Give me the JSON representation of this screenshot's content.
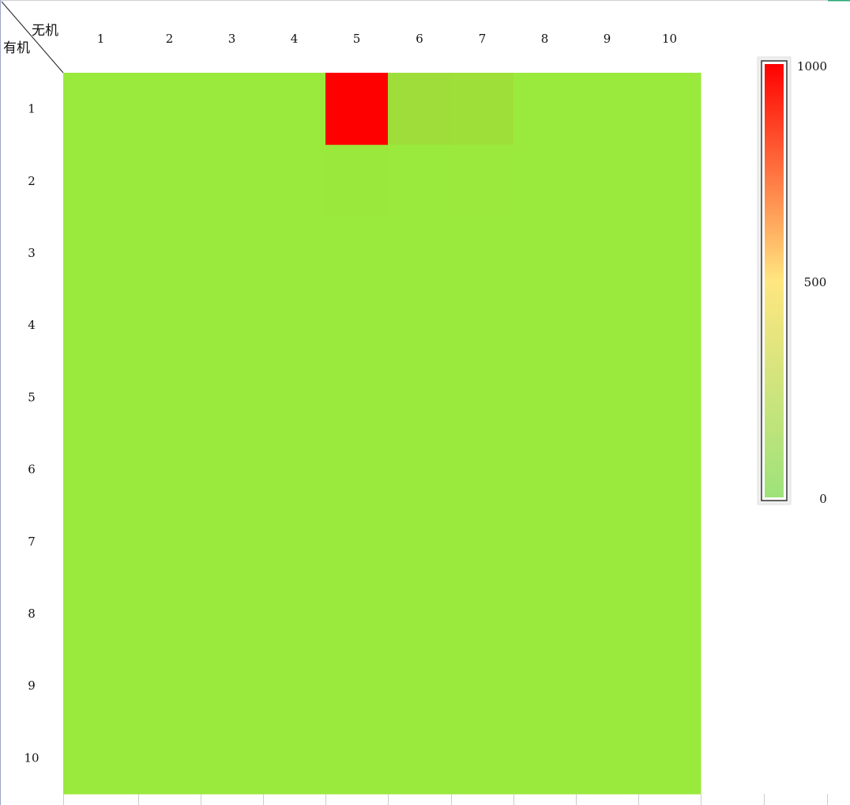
{
  "chart_data": {
    "type": "heatmap",
    "corner_labels": {
      "column_header": "无机",
      "row_header": "有机"
    },
    "columns": [
      "1",
      "2",
      "3",
      "4",
      "5",
      "6",
      "7",
      "8",
      "9",
      "10"
    ],
    "rows": [
      "1",
      "2",
      "3",
      "4",
      "5",
      "6",
      "7",
      "8",
      "9",
      "10"
    ],
    "values": [
      [
        0,
        0,
        0,
        0,
        1000,
        50,
        45,
        0,
        0,
        0
      ],
      [
        0,
        0,
        0,
        0,
        8,
        0,
        6,
        0,
        0,
        0
      ],
      [
        0,
        0,
        0,
        0,
        0,
        0,
        0,
        0,
        0,
        0
      ],
      [
        0,
        0,
        0,
        0,
        0,
        0,
        0,
        0,
        0,
        0
      ],
      [
        0,
        0,
        0,
        0,
        0,
        0,
        0,
        0,
        0,
        0
      ],
      [
        0,
        0,
        0,
        0,
        0,
        0,
        0,
        0,
        0,
        0
      ],
      [
        0,
        0,
        0,
        0,
        0,
        0,
        0,
        0,
        0,
        0
      ],
      [
        0,
        0,
        0,
        0,
        0,
        0,
        0,
        0,
        0,
        0
      ],
      [
        0,
        0,
        0,
        0,
        0,
        0,
        0,
        0,
        0,
        0
      ],
      [
        0,
        0,
        0,
        0,
        0,
        0,
        0,
        0,
        0,
        0
      ]
    ],
    "color_scale": {
      "min": 0,
      "max": 1000,
      "tick_labels": [
        "1000",
        "500",
        "0"
      ],
      "tick_values": [
        1000,
        500,
        0
      ],
      "stops": [
        {
          "value": 0,
          "color": "#9ee27a"
        },
        {
          "value": 500,
          "color": "#ffe680"
        },
        {
          "value": 1000,
          "color": "#ff0000"
        }
      ]
    },
    "cell_colors": {
      "low": "#9aea3d",
      "high": "#ff0000"
    }
  }
}
